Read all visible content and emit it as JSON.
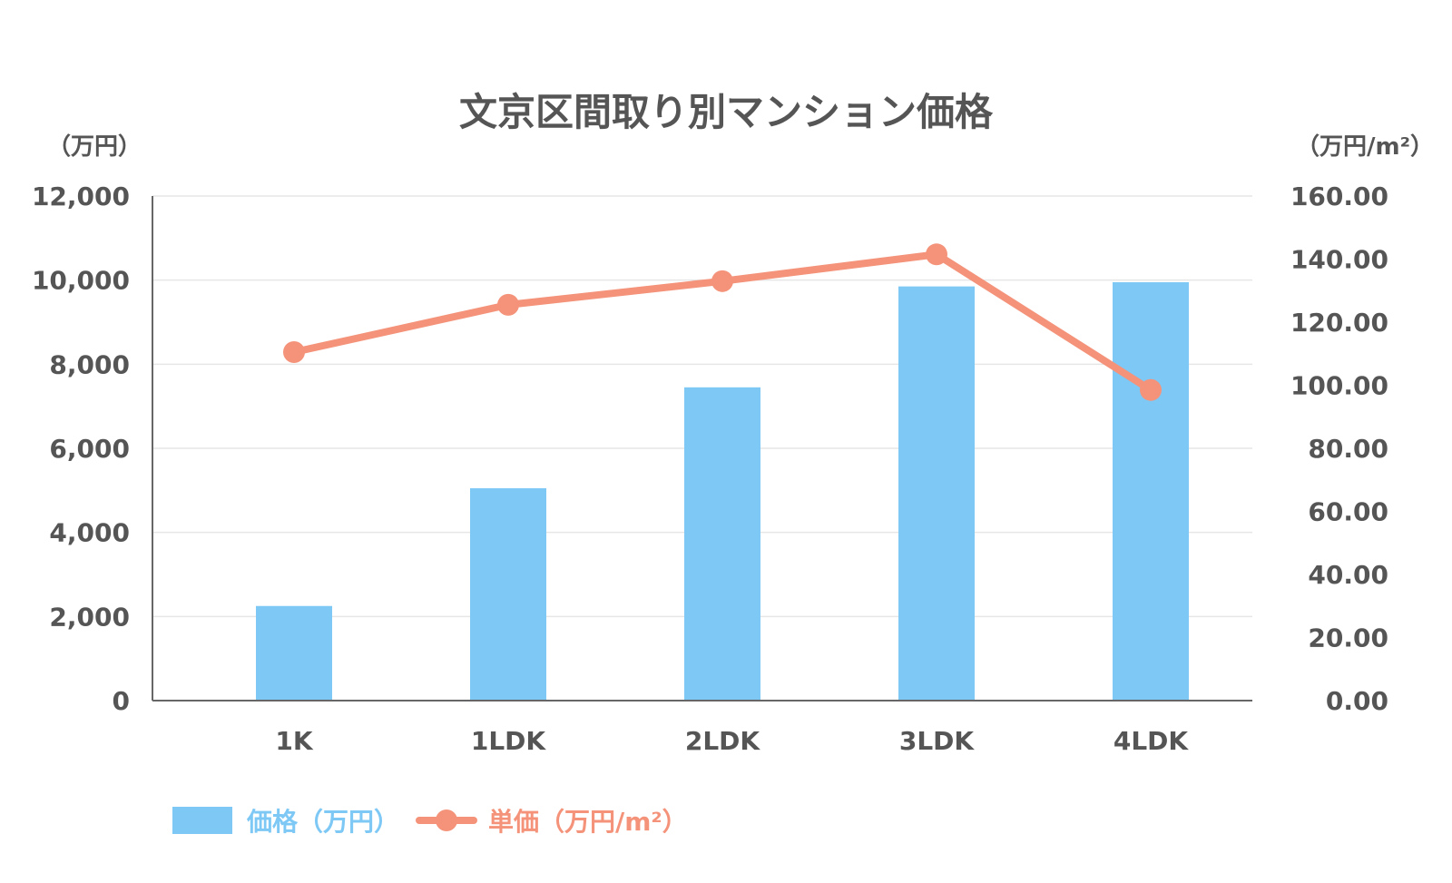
{
  "colors": {
    "bar": "#7ec8f5",
    "line": "#f4937a",
    "grid": "#e6e6e6",
    "axis": "#666666",
    "text": "#555555"
  },
  "chart_data": {
    "type": "bar",
    "title": "文京区間取り別マンション価格",
    "ylabel_left": "（万円）",
    "ylabel_right": "（万円/m²）",
    "categories": [
      "1K",
      "1LDK",
      "2LDK",
      "3LDK",
      "4LDK"
    ],
    "ylim_left": [
      0,
      12000
    ],
    "ylim_right": [
      0,
      160
    ],
    "yticks_left": [
      "0",
      "2,000",
      "4,000",
      "6,000",
      "8,000",
      "10,000",
      "12,000"
    ],
    "yticks_right": [
      "0.00",
      "20.00",
      "40.00",
      "60.00",
      "80.00",
      "100.00",
      "120.00",
      "140.00",
      "160.00"
    ],
    "grid": true,
    "legend_position": "bottom-left",
    "series": [
      {
        "name": "価格（万円）",
        "type": "bar",
        "axis": "left",
        "values": [
          2250,
          5050,
          7450,
          9850,
          9950
        ]
      },
      {
        "name": "単価（万円/m²）",
        "type": "line",
        "axis": "right",
        "values": [
          110.5,
          125.5,
          133,
          141.5,
          98.5
        ]
      }
    ]
  }
}
